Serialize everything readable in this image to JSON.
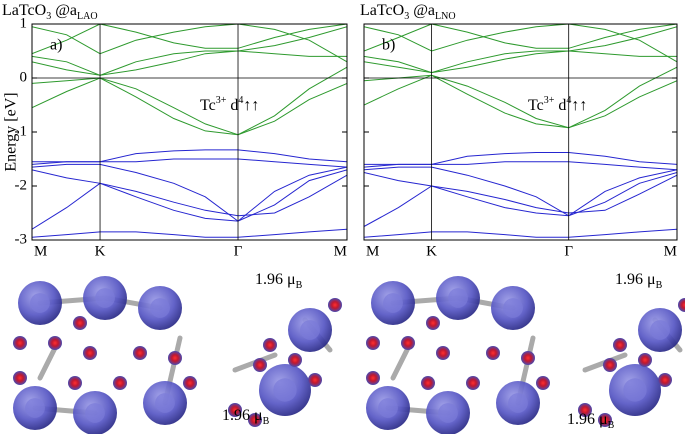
{
  "chart_data": [
    {
      "type": "line",
      "title": [
        "LaTcO",
        "3",
        " @a",
        "LAO"
      ],
      "panel_label": "a)",
      "annotation": [
        "Tc",
        "3+",
        " d",
        "4",
        "↑↑"
      ],
      "y_label": "Energy [eV]",
      "show_ytick_labels": true,
      "x": [
        0,
        0.11,
        0.216,
        0.33,
        0.45,
        0.55,
        0.654,
        0.77,
        0.88,
        1
      ],
      "xlim": [
        0,
        1
      ],
      "xticks": [
        {
          "value": 0,
          "label": "M"
        },
        {
          "value": 0.216,
          "label": "K"
        },
        {
          "value": 0.654,
          "label": "Γ"
        },
        {
          "value": 1,
          "label": "M"
        }
      ],
      "ylim": [
        -3,
        1
      ],
      "yticks": [
        1,
        0,
        -1,
        -2,
        -3
      ],
      "grid": "x",
      "zero_line": true,
      "series": [
        {
          "color": "#2e9a2e",
          "values": [
            -0.55,
            -0.25,
            0.0,
            -0.35,
            -0.75,
            -0.98,
            -1.05,
            -0.8,
            -0.4,
            -0.1
          ]
        },
        {
          "color": "#2e9a2e",
          "values": [
            -0.1,
            -0.05,
            0.0,
            -0.2,
            -0.55,
            -0.85,
            -1.05,
            -0.7,
            -0.2,
            0.2
          ]
        },
        {
          "color": "#2e9a2e",
          "values": [
            0.3,
            0.15,
            0.05,
            0.15,
            0.3,
            0.45,
            0.5,
            0.6,
            0.75,
            0.95
          ]
        },
        {
          "color": "#2e9a2e",
          "values": [
            0.4,
            0.3,
            0.05,
            0.3,
            0.45,
            0.5,
            0.5,
            0.45,
            0.4,
            0.4
          ]
        },
        {
          "color": "#2e9a2e",
          "values": [
            0.95,
            0.8,
            0.45,
            0.7,
            0.85,
            0.95,
            1.0,
            0.9,
            0.7,
            0.3
          ]
        },
        {
          "color": "#2e9a2e",
          "values": [
            0.45,
            0.7,
            1.0,
            0.85,
            0.65,
            0.55,
            0.55,
            0.75,
            0.9,
            1.0
          ]
        },
        {
          "color": "#2626d0",
          "values": [
            -1.55,
            -1.55,
            -1.55,
            -1.4,
            -1.35,
            -1.33,
            -1.33,
            -1.4,
            -1.5,
            -1.55
          ]
        },
        {
          "color": "#2626d0",
          "values": [
            -1.6,
            -1.55,
            -1.55,
            -1.55,
            -1.5,
            -1.5,
            -1.5,
            -1.55,
            -1.6,
            -1.65
          ]
        },
        {
          "color": "#2626d0",
          "values": [
            -1.65,
            -1.6,
            -1.6,
            -1.75,
            -1.95,
            -2.2,
            -2.65,
            -2.1,
            -1.8,
            -1.65
          ]
        },
        {
          "color": "#2626d0",
          "values": [
            -1.7,
            -1.85,
            -1.95,
            -2.2,
            -2.45,
            -2.6,
            -2.65,
            -2.35,
            -1.9,
            -1.7
          ]
        },
        {
          "color": "#2626d0",
          "values": [
            -2.8,
            -2.4,
            -1.95,
            -2.1,
            -2.3,
            -2.45,
            -2.55,
            -2.5,
            -2.2,
            -1.8
          ]
        },
        {
          "color": "#2626d0",
          "values": [
            -2.95,
            -2.9,
            -2.85,
            -2.85,
            -2.9,
            -2.95,
            -2.95,
            -2.9,
            -2.85,
            -2.8
          ]
        }
      ]
    },
    {
      "type": "line",
      "title": [
        "LaTcO",
        "3",
        " @a",
        "LNO"
      ],
      "panel_label": "b)",
      "annotation": [
        "Tc",
        "3+",
        " d",
        "4",
        "↑↑"
      ],
      "show_ytick_labels": false,
      "x": [
        0,
        0.11,
        0.216,
        0.33,
        0.45,
        0.55,
        0.654,
        0.77,
        0.88,
        1
      ],
      "xlim": [
        0,
        1
      ],
      "xticks": [
        {
          "value": 0,
          "label": "M"
        },
        {
          "value": 0.216,
          "label": "K"
        },
        {
          "value": 0.654,
          "label": "Γ"
        },
        {
          "value": 1,
          "label": "M"
        }
      ],
      "ylim": [
        -3,
        1
      ],
      "yticks": [
        1,
        0,
        -1,
        -2,
        -3
      ],
      "grid": "x",
      "zero_line": true,
      "series": [
        {
          "color": "#2e9a2e",
          "values": [
            -0.5,
            -0.2,
            0.05,
            -0.3,
            -0.65,
            -0.85,
            -0.92,
            -0.7,
            -0.35,
            -0.05
          ]
        },
        {
          "color": "#2e9a2e",
          "values": [
            -0.05,
            0.0,
            0.05,
            -0.15,
            -0.45,
            -0.75,
            -0.92,
            -0.6,
            -0.15,
            0.2
          ]
        },
        {
          "color": "#2e9a2e",
          "values": [
            0.3,
            0.2,
            0.1,
            0.2,
            0.35,
            0.45,
            0.5,
            0.6,
            0.75,
            0.95
          ]
        },
        {
          "color": "#2e9a2e",
          "values": [
            0.4,
            0.3,
            0.1,
            0.3,
            0.45,
            0.5,
            0.5,
            0.45,
            0.4,
            0.4
          ]
        },
        {
          "color": "#2e9a2e",
          "values": [
            0.95,
            0.8,
            0.5,
            0.7,
            0.85,
            0.95,
            1.0,
            0.9,
            0.7,
            0.3
          ]
        },
        {
          "color": "#2e9a2e",
          "values": [
            0.5,
            0.75,
            1.0,
            0.85,
            0.65,
            0.55,
            0.55,
            0.75,
            0.9,
            1.0
          ]
        },
        {
          "color": "#2626d0",
          "values": [
            -1.6,
            -1.6,
            -1.6,
            -1.45,
            -1.4,
            -1.38,
            -1.38,
            -1.45,
            -1.55,
            -1.6
          ]
        },
        {
          "color": "#2626d0",
          "values": [
            -1.65,
            -1.6,
            -1.6,
            -1.6,
            -1.55,
            -1.55,
            -1.55,
            -1.6,
            -1.65,
            -1.7
          ]
        },
        {
          "color": "#2626d0",
          "values": [
            -1.7,
            -1.65,
            -1.65,
            -1.8,
            -2.0,
            -2.2,
            -2.55,
            -2.1,
            -1.85,
            -1.7
          ]
        },
        {
          "color": "#2626d0",
          "values": [
            -1.75,
            -1.9,
            -2.0,
            -2.2,
            -2.4,
            -2.5,
            -2.55,
            -2.3,
            -1.95,
            -1.75
          ]
        },
        {
          "color": "#2626d0",
          "values": [
            -2.75,
            -2.4,
            -2.0,
            -2.1,
            -2.25,
            -2.4,
            -2.5,
            -2.45,
            -2.15,
            -1.8
          ]
        },
        {
          "color": "#2626d0",
          "values": [
            -2.95,
            -2.9,
            -2.85,
            -2.85,
            -2.9,
            -2.95,
            -2.95,
            -2.9,
            -2.85,
            -2.8
          ]
        }
      ]
    }
  ],
  "spin_density": {
    "moment_labels": [
      [
        "1.96 μ",
        "B"
      ],
      [
        "1.96 μ",
        "B"
      ],
      [
        "1.96 μ",
        "B"
      ],
      [
        "1.96 μ",
        "B"
      ]
    ]
  }
}
